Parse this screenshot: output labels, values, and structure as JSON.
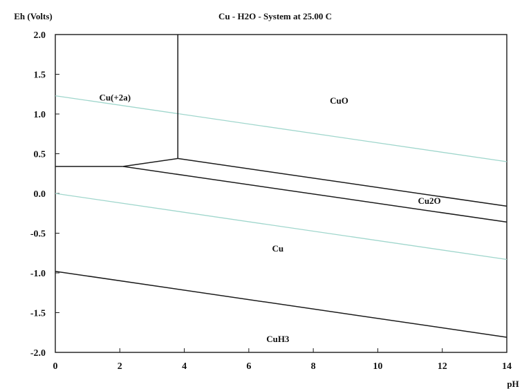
{
  "chart_data": {
    "type": "line",
    "title": "Cu - H2O - System at 25.00 C",
    "ylabel": "Eh (Volts)",
    "xlabel": "pH",
    "xlim": [
      0,
      14
    ],
    "ylim": [
      -2.0,
      2.0
    ],
    "xticks": [
      "0",
      "2",
      "4",
      "6",
      "8",
      "10",
      "12",
      "14"
    ],
    "yticks": [
      "2.0",
      "1.5",
      "1.0",
      "0.5",
      "0.0",
      "-0.5",
      "-1.0",
      "-1.5",
      "-2.0"
    ],
    "grid": false,
    "water_line_color": "#9fd6cc",
    "boundary_color": "#1a1a1a",
    "series": [
      {
        "points": [
          [
            0,
            1.23
          ],
          [
            14,
            0.4
          ]
        ],
        "kind": "water"
      },
      {
        "points": [
          [
            0,
            0.0
          ],
          [
            14,
            -0.83
          ]
        ],
        "kind": "water"
      },
      {
        "points": [
          [
            0,
            0.34
          ],
          [
            2.1,
            0.34
          ]
        ],
        "kind": "boundary"
      },
      {
        "points": [
          [
            2.1,
            0.34
          ],
          [
            3.8,
            0.44
          ]
        ],
        "kind": "boundary"
      },
      {
        "points": [
          [
            3.8,
            0.44
          ],
          [
            3.8,
            2.0
          ]
        ],
        "kind": "boundary"
      },
      {
        "points": [
          [
            3.8,
            0.44
          ],
          [
            14,
            -0.16
          ]
        ],
        "kind": "boundary"
      },
      {
        "points": [
          [
            2.1,
            0.34
          ],
          [
            14,
            -0.36
          ]
        ],
        "kind": "boundary"
      },
      {
        "points": [
          [
            0,
            -0.98
          ],
          [
            14,
            -1.81
          ]
        ],
        "kind": "boundary"
      }
    ],
    "regions": [
      {
        "label": "Cu(+2a)",
        "x": 1.85,
        "y": 1.17
      },
      {
        "label": "CuO",
        "x": 8.8,
        "y": 1.13
      },
      {
        "label": "Cu2O",
        "x": 11.6,
        "y": -0.13
      },
      {
        "label": "Cu",
        "x": 6.9,
        "y": -0.73
      },
      {
        "label": "CuH3",
        "x": 6.9,
        "y": -1.87
      }
    ]
  }
}
